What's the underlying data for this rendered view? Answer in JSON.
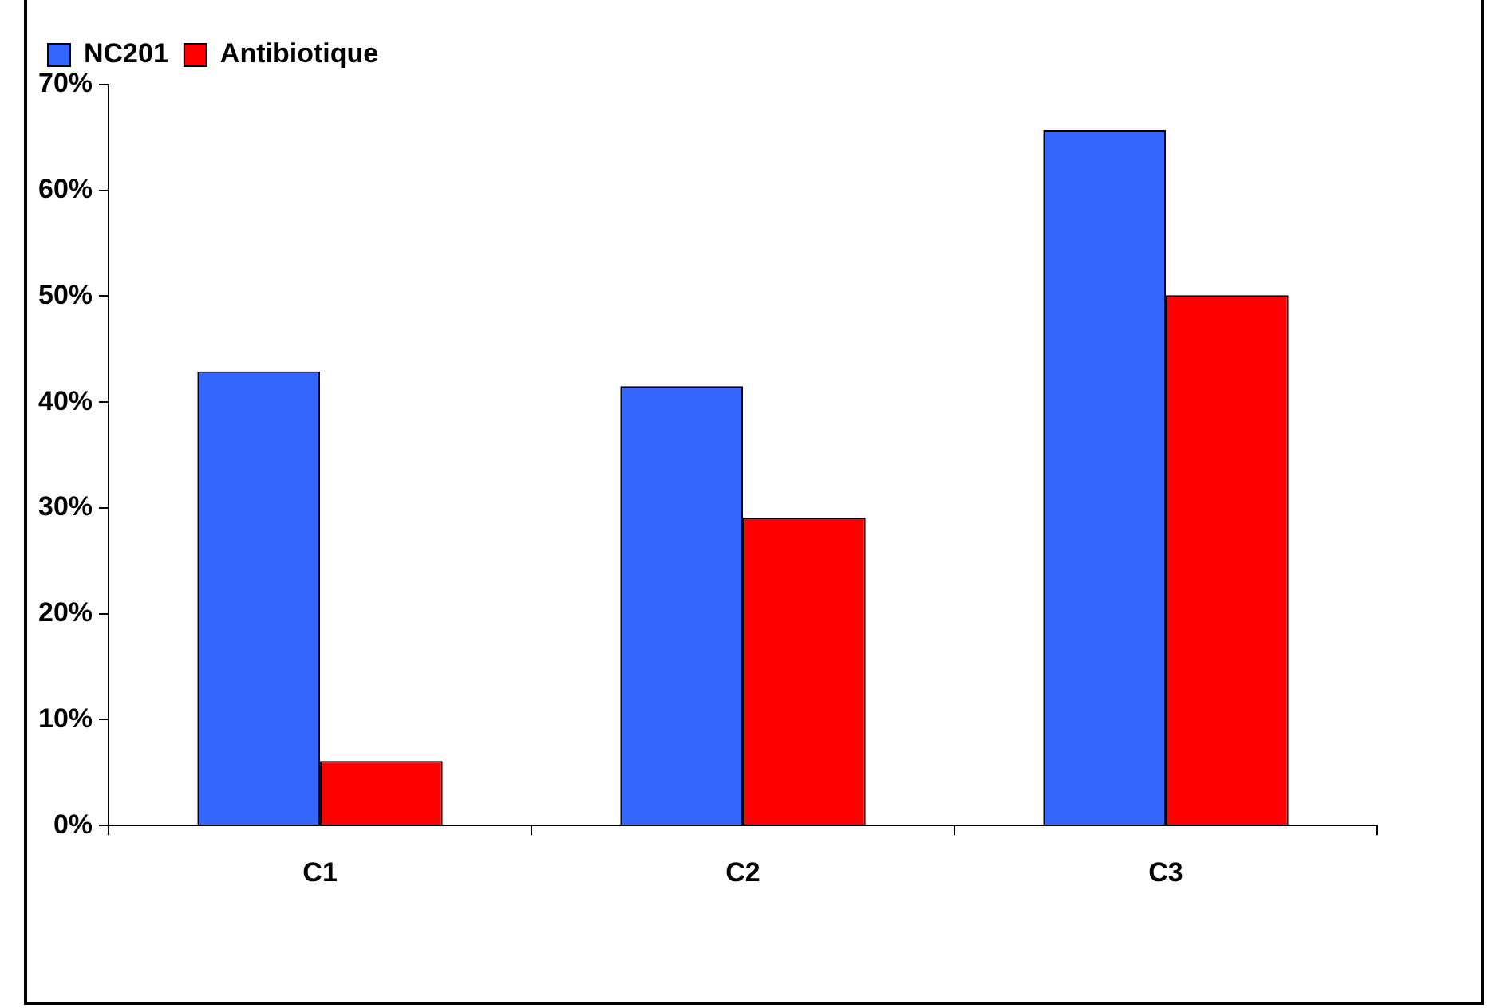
{
  "chart_data": {
    "type": "bar",
    "categories": [
      "C1",
      "C2",
      "C3"
    ],
    "series": [
      {
        "name": "NC201",
        "color": "#3366ff",
        "values": [
          42.9,
          41.5,
          65.7
        ]
      },
      {
        "name": "Antibiotique",
        "color": "#ff0000",
        "values": [
          6.1,
          29.1,
          50.1
        ]
      }
    ],
    "ylim": [
      0,
      70
    ],
    "yticks": [
      {
        "value": 0,
        "label": "0%"
      },
      {
        "value": 10,
        "label": "10%"
      },
      {
        "value": 20,
        "label": "20%"
      },
      {
        "value": 30,
        "label": "30%"
      },
      {
        "value": 40,
        "label": "40%"
      },
      {
        "value": 50,
        "label": "50%"
      },
      {
        "value": 60,
        "label": "60%"
      },
      {
        "value": 70,
        "label": "70%"
      }
    ],
    "grid": false,
    "legend": "top left"
  }
}
